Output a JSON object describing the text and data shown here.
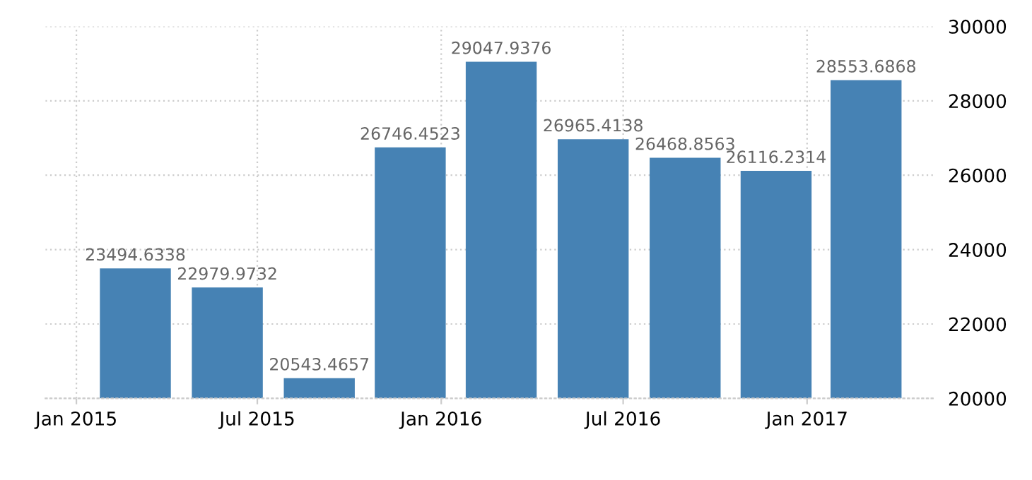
{
  "chart_data": {
    "type": "bar",
    "x": [
      "2015-03-01",
      "2015-06-01",
      "2015-09-01",
      "2015-12-01",
      "2016-03-01",
      "2016-06-01",
      "2016-09-01",
      "2016-12-01",
      "2017-03-01"
    ],
    "values": [
      23494.6338,
      22979.9732,
      20543.4657,
      26746.4523,
      29047.9376,
      26965.4138,
      26468.8563,
      26116.2314,
      28553.6868
    ],
    "color": "#4682b4",
    "data_labels": true,
    "xlim": [
      "2014-12-01",
      "2017-05-10"
    ],
    "xticks": [
      {
        "value": "2015-01",
        "label": "Jan 2015"
      },
      {
        "value": "2015-07",
        "label": "Jul 2015"
      },
      {
        "value": "2016-01",
        "label": "Jan 2016"
      },
      {
        "value": "2016-07",
        "label": "Jul 2016"
      },
      {
        "value": "2017-01",
        "label": "Jan 2017"
      }
    ],
    "ylim": [
      20000,
      30000
    ],
    "yticks": [
      20000,
      22000,
      24000,
      26000,
      28000,
      30000
    ],
    "grid": true
  }
}
